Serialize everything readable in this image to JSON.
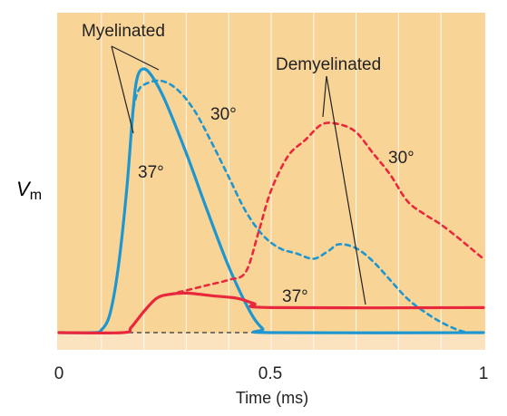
{
  "chart_data": {
    "type": "line",
    "xlabel": "Time (ms)",
    "ylabel": "V",
    "ylabel_subscript": "m",
    "xlim": [
      0,
      1
    ],
    "x_ticks": [
      "0",
      "0.5",
      "1"
    ],
    "grid": true,
    "colors": {
      "plot_background": "#F9D497",
      "plot_lower_band": "#FCE3C0",
      "grid": "#FFFFFF",
      "myelinated": "#1E96D0",
      "demyelinated": "#E8283C",
      "baseline": "#333333",
      "annotation_line": "#222222"
    },
    "series": [
      {
        "group": "Myelinated",
        "temperature": "37°",
        "color_key": "myelinated",
        "dash": false,
        "points": [
          [
            0,
            0
          ],
          [
            0.08,
            0
          ],
          [
            0.1,
            0.01
          ],
          [
            0.12,
            0.07
          ],
          [
            0.14,
            0.25
          ],
          [
            0.16,
            0.55
          ],
          [
            0.175,
            0.85
          ],
          [
            0.185,
            0.97
          ],
          [
            0.2,
            1.0
          ],
          [
            0.22,
            0.97
          ],
          [
            0.25,
            0.88
          ],
          [
            0.3,
            0.68
          ],
          [
            0.35,
            0.46
          ],
          [
            0.4,
            0.25
          ],
          [
            0.45,
            0.08
          ],
          [
            0.48,
            0.015
          ],
          [
            0.5,
            0
          ],
          [
            1,
            0
          ]
        ]
      },
      {
        "group": "Myelinated",
        "temperature": "30°",
        "color_key": "myelinated",
        "dash": true,
        "points": [
          [
            0.175,
            0.85
          ],
          [
            0.185,
            0.91
          ],
          [
            0.2,
            0.94
          ],
          [
            0.24,
            0.955
          ],
          [
            0.28,
            0.92
          ],
          [
            0.32,
            0.84
          ],
          [
            0.36,
            0.72
          ],
          [
            0.4,
            0.59
          ],
          [
            0.44,
            0.46
          ],
          [
            0.48,
            0.37
          ],
          [
            0.52,
            0.32
          ],
          [
            0.56,
            0.3
          ],
          [
            0.6,
            0.28
          ],
          [
            0.635,
            0.31
          ],
          [
            0.66,
            0.335
          ],
          [
            0.7,
            0.32
          ],
          [
            0.74,
            0.27
          ],
          [
            0.78,
            0.2
          ],
          [
            0.82,
            0.13
          ],
          [
            0.86,
            0.08
          ],
          [
            0.9,
            0.04
          ],
          [
            0.94,
            0.01
          ],
          [
            0.97,
            0
          ],
          [
            1,
            0
          ]
        ]
      },
      {
        "group": "Demyelinated",
        "temperature": "37°",
        "color_key": "demyelinated",
        "dash": false,
        "points": [
          [
            0,
            0
          ],
          [
            0.15,
            0
          ],
          [
            0.17,
            0.02
          ],
          [
            0.2,
            0.08
          ],
          [
            0.23,
            0.13
          ],
          [
            0.26,
            0.145
          ],
          [
            0.3,
            0.15
          ],
          [
            0.36,
            0.14
          ],
          [
            0.42,
            0.13
          ],
          [
            0.46,
            0.11
          ],
          [
            0.5,
            0.095
          ],
          [
            1,
            0.095
          ]
        ]
      },
      {
        "group": "Demyelinated",
        "temperature": "30°",
        "color_key": "demyelinated",
        "dash": true,
        "points": [
          [
            0.26,
            0.145
          ],
          [
            0.3,
            0.16
          ],
          [
            0.35,
            0.18
          ],
          [
            0.4,
            0.2
          ],
          [
            0.44,
            0.23
          ],
          [
            0.47,
            0.38
          ],
          [
            0.5,
            0.54
          ],
          [
            0.54,
            0.67
          ],
          [
            0.58,
            0.73
          ],
          [
            0.62,
            0.79
          ],
          [
            0.66,
            0.79
          ],
          [
            0.7,
            0.76
          ],
          [
            0.74,
            0.68
          ],
          [
            0.78,
            0.6
          ],
          [
            0.82,
            0.5
          ],
          [
            0.86,
            0.45
          ],
          [
            0.9,
            0.41
          ],
          [
            0.94,
            0.36
          ],
          [
            0.97,
            0.32
          ],
          [
            1,
            0.28
          ]
        ]
      }
    ],
    "annotations": {
      "myelinated_label": "Myelinated",
      "demyelinated_label": "Demyelinated",
      "myelinated_37": "37°",
      "myelinated_30": "30°",
      "demyelinated_37": "37°",
      "demyelinated_30": "30°"
    }
  }
}
